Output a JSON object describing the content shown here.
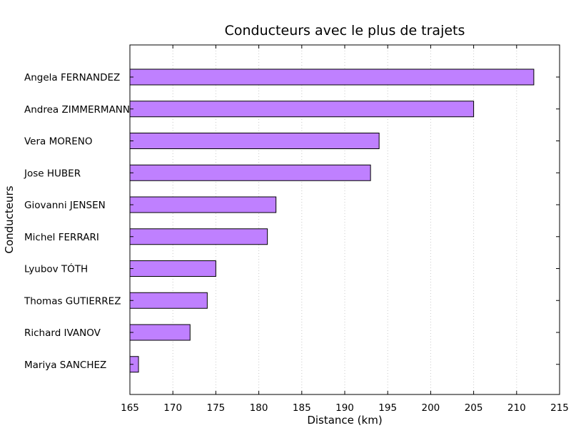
{
  "chart_data": {
    "type": "bar",
    "orientation": "horizontal",
    "title": "Conducteurs avec le plus de trajets",
    "xlabel": "Distance (km)",
    "ylabel": "Conducteurs",
    "xlim": [
      165,
      215
    ],
    "xticks": [
      165,
      170,
      175,
      180,
      185,
      190,
      195,
      200,
      205,
      210,
      215
    ],
    "grid": "vertical dotted",
    "bar_color": "#bf80ff",
    "edge_color": "#000000",
    "categories": [
      "Angela FERNANDEZ",
      "Andrea ZIMMERMANN",
      "Vera MORENO",
      "Jose HUBER",
      "Giovanni JENSEN",
      "Michel FERRARI",
      "Lyubov TÓTH",
      "Thomas GUTIERREZ",
      "Richard IVANOV",
      "Mariya SANCHEZ"
    ],
    "values": [
      212,
      205,
      194,
      193,
      182,
      181,
      175,
      174,
      172,
      166
    ]
  }
}
